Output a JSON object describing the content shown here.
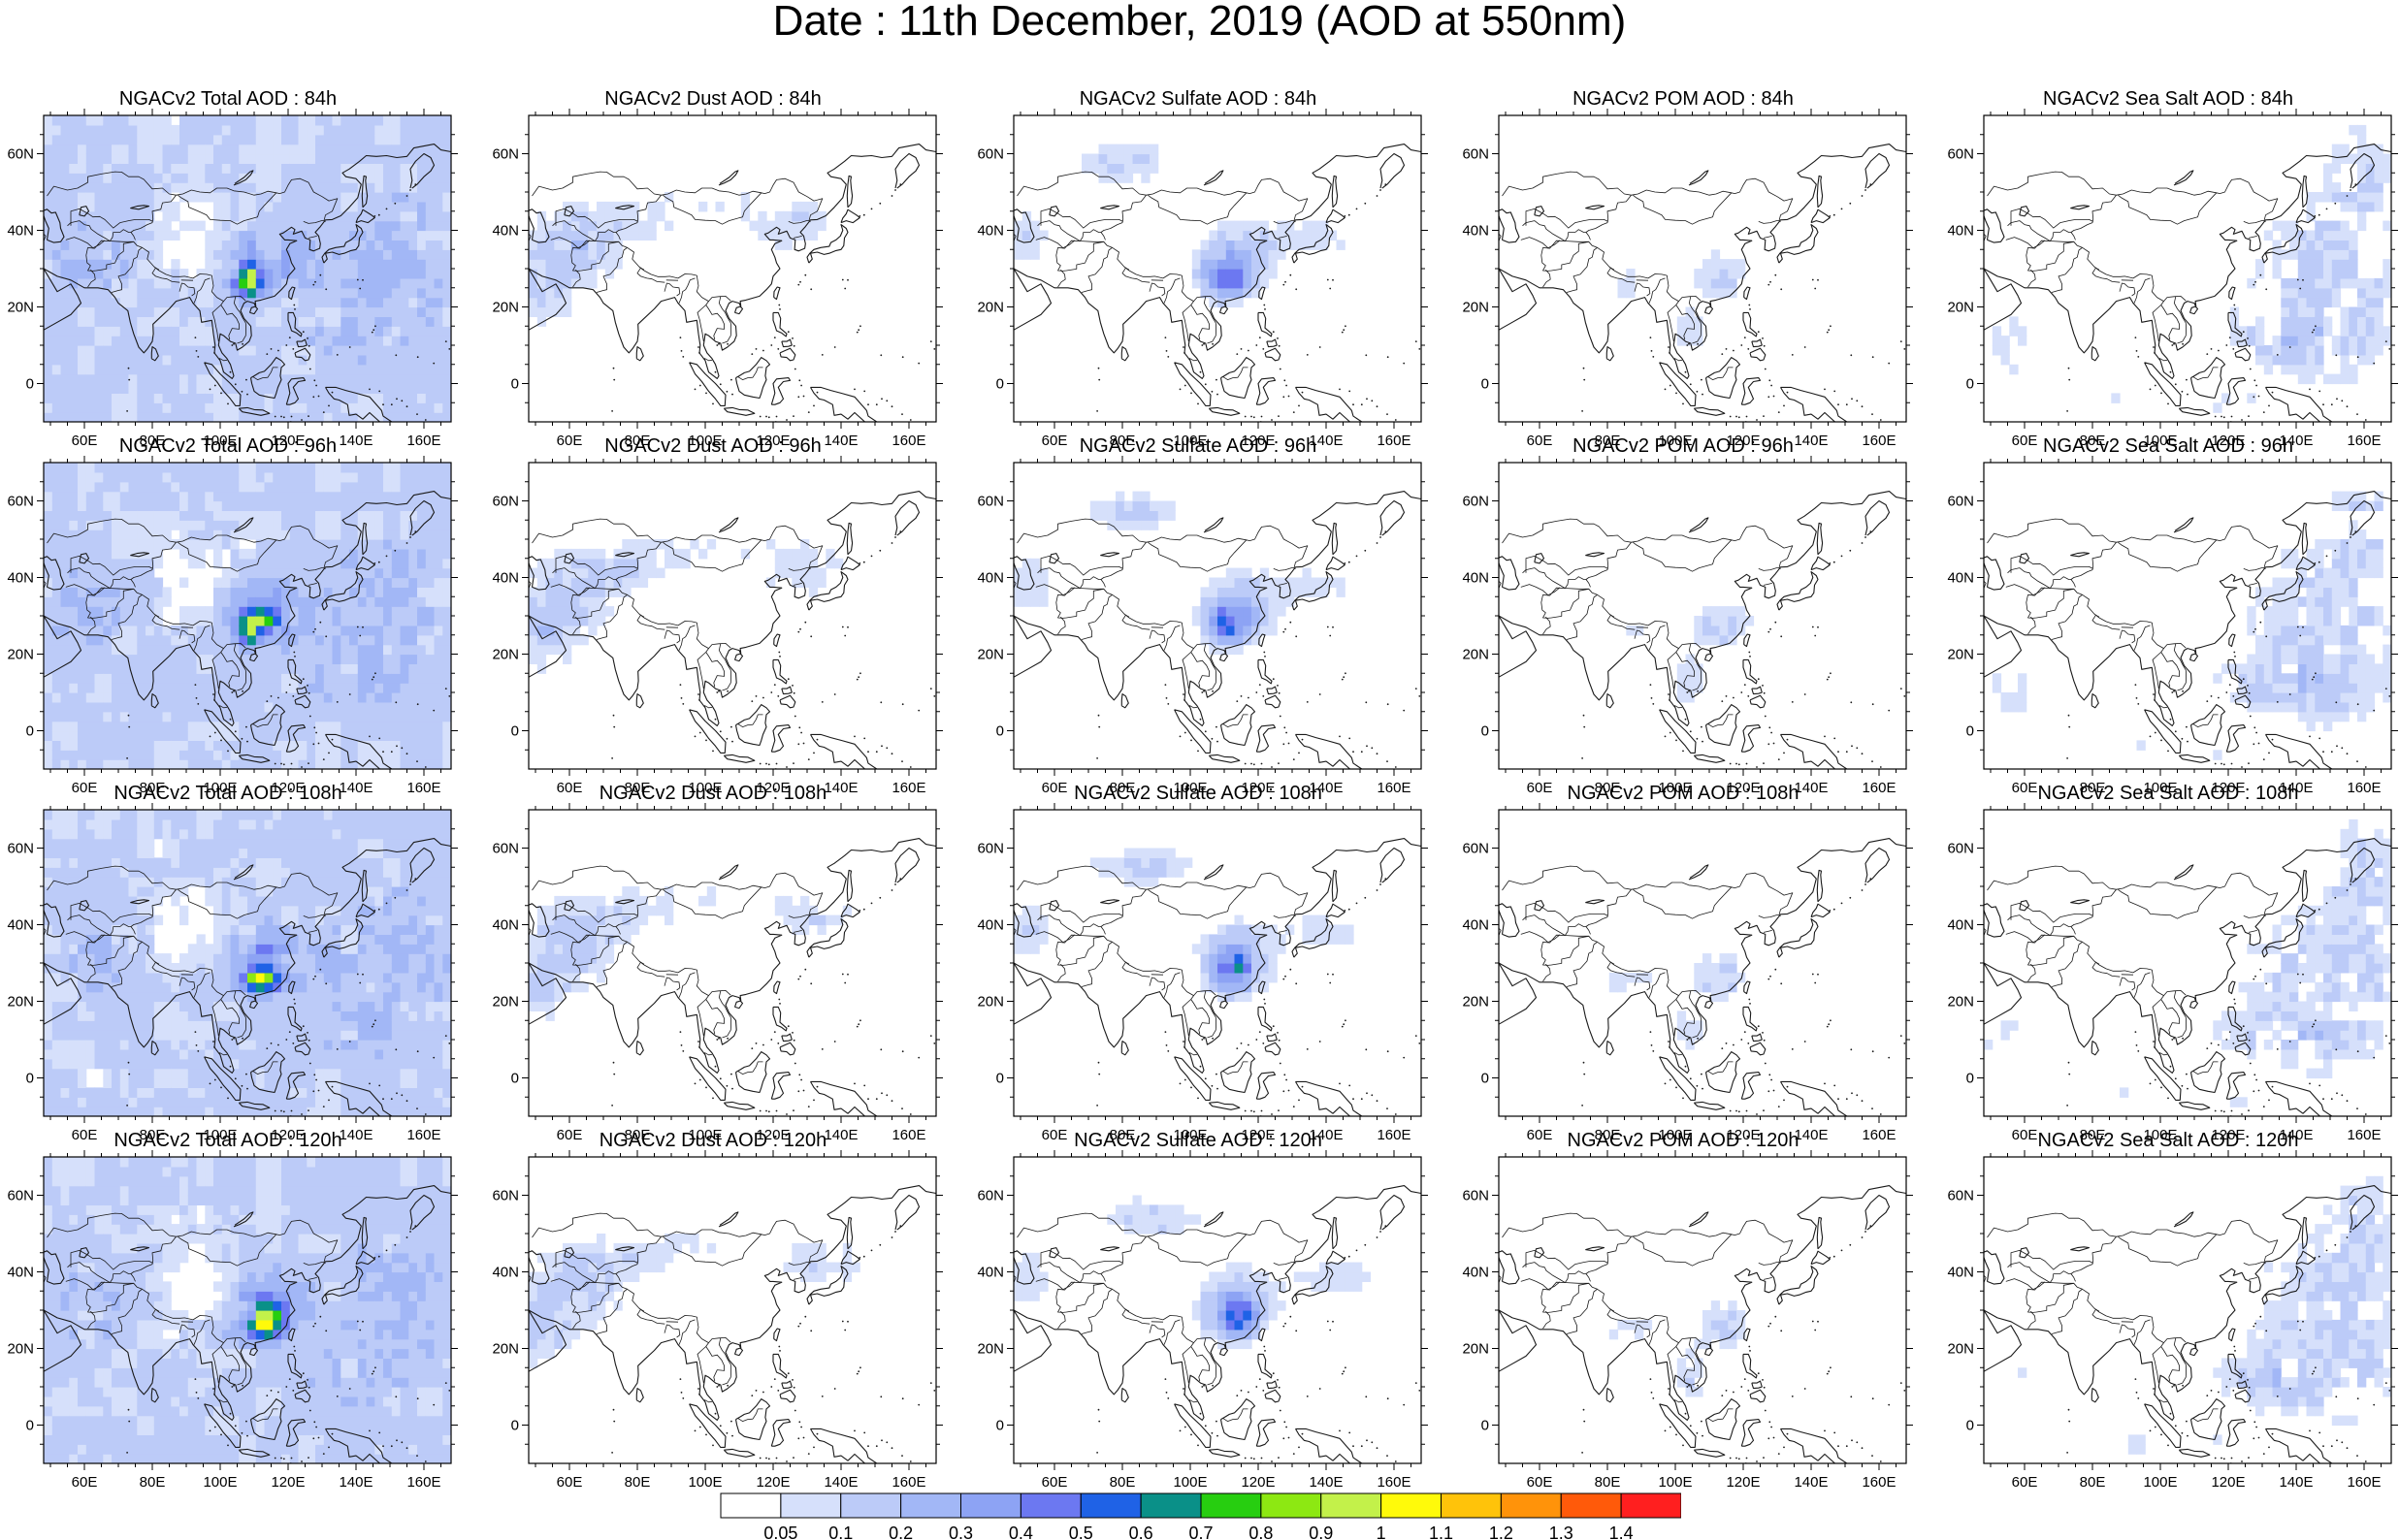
{
  "title": "Date : 11th December, 2019 (AOD at 550nm)",
  "panels": [
    {
      "title": "NGACv2 Total AOD : 84h",
      "species": "total",
      "hour": 84
    },
    {
      "title": "NGACv2 Dust AOD : 84h",
      "species": "dust",
      "hour": 84
    },
    {
      "title": "NGACv2 Sulfate AOD : 84h",
      "species": "sulfate",
      "hour": 84
    },
    {
      "title": "NGACv2 POM AOD : 84h",
      "species": "pom",
      "hour": 84
    },
    {
      "title": "NGACv2 Sea Salt AOD : 84h",
      "species": "seasalt",
      "hour": 84
    },
    {
      "title": "NGACv2 Total AOD : 96h",
      "species": "total",
      "hour": 96
    },
    {
      "title": "NGACv2 Dust AOD : 96h",
      "species": "dust",
      "hour": 96
    },
    {
      "title": "NGACv2 Sulfate AOD : 96h",
      "species": "sulfate",
      "hour": 96
    },
    {
      "title": "NGACv2 POM AOD : 96h",
      "species": "pom",
      "hour": 96
    },
    {
      "title": "NGACv2 Sea Salt AOD : 96h",
      "species": "seasalt",
      "hour": 96
    },
    {
      "title": "NGACv2 Total AOD : 108h",
      "species": "total",
      "hour": 108
    },
    {
      "title": "NGACv2 Dust AOD : 108h",
      "species": "dust",
      "hour": 108
    },
    {
      "title": "NGACv2 Sulfate AOD : 108h",
      "species": "sulfate",
      "hour": 108
    },
    {
      "title": "NGACv2 POM AOD : 108h",
      "species": "pom",
      "hour": 108
    },
    {
      "title": "NGACv2 Sea Salt AOD : 108h",
      "species": "seasalt",
      "hour": 108
    },
    {
      "title": "NGACv2 Total AOD : 120h",
      "species": "total",
      "hour": 120
    },
    {
      "title": "NGACv2 Dust AOD : 120h",
      "species": "dust",
      "hour": 120
    },
    {
      "title": "NGACv2 Sulfate AOD : 120h",
      "species": "sulfate",
      "hour": 120
    },
    {
      "title": "NGACv2 POM AOD : 120h",
      "species": "pom",
      "hour": 120
    },
    {
      "title": "NGACv2 Sea Salt  AOD : 120h",
      "species": "seasalt",
      "hour": 120
    }
  ],
  "map": {
    "lon_range": [
      48,
      168
    ],
    "lat_range": [
      -10,
      70
    ],
    "lon_ticks": [
      "60E",
      "80E",
      "100E",
      "120E",
      "140E",
      "160E"
    ],
    "lon_tick_values": [
      60,
      80,
      100,
      120,
      140,
      160
    ],
    "lat_ticks": [
      "60N",
      "40N",
      "20N",
      "0"
    ],
    "lat_tick_values": [
      60,
      40,
      20,
      0
    ],
    "coastline_color": "#1a1a1a"
  },
  "colorbar": {
    "labels": [
      "0.05",
      "0.1",
      "0.2",
      "0.3",
      "0.4",
      "0.5",
      "0.6",
      "0.7",
      "0.8",
      "0.9",
      "1",
      "1.1",
      "1.2",
      "1.3",
      "1.4"
    ],
    "colors": [
      "#ffffff",
      "#d6e0fb",
      "#bccbf8",
      "#a2b7f6",
      "#8da3f4",
      "#6c78f1",
      "#1f62e6",
      "#0a9088",
      "#27ce10",
      "#8de812",
      "#c3f14a",
      "#fffa0a",
      "#ffc30a",
      "#ff930a",
      "#ff5a0a",
      "#ff1f1f"
    ]
  }
}
